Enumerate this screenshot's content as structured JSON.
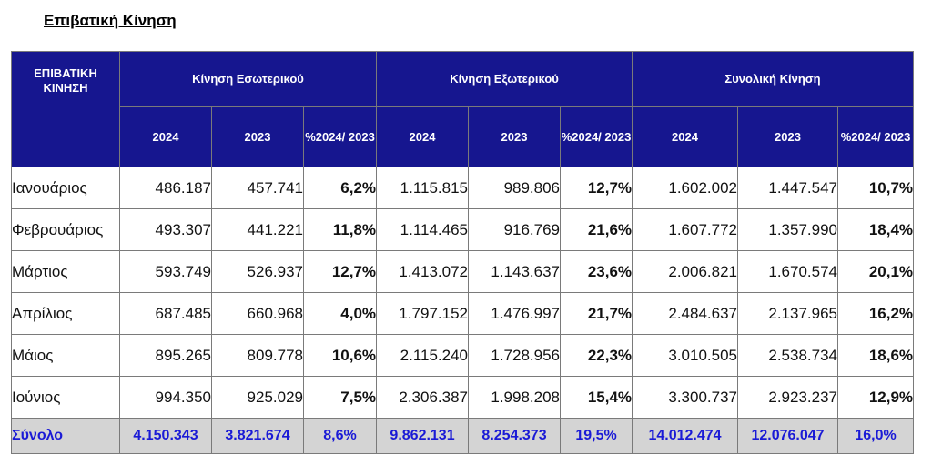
{
  "title": "Επιβατική Κίνηση",
  "header": {
    "corner": "ΕΠΙΒΑΤΙΚΗ ΚΙΝΗΣΗ",
    "groups": [
      "Κίνηση Εσωτερικού",
      "Κίνηση Εξωτερικού",
      "Συνολική Κίνηση"
    ],
    "sub": [
      "2024",
      "2023",
      "%2024/ 2023",
      "2024",
      "2023",
      "%2024/ 2023",
      "2024",
      "2023",
      "%2024/ 2023"
    ]
  },
  "rows": [
    {
      "month": "Ιανουάριος",
      "v": [
        "486.187",
        "457.741",
        "6,2%",
        "1.115.815",
        "989.806",
        "12,7%",
        "1.602.002",
        "1.447.547",
        "10,7%"
      ]
    },
    {
      "month": "Φεβρουάριος",
      "v": [
        "493.307",
        "441.221",
        "11,8%",
        "1.114.465",
        "916.769",
        "21,6%",
        "1.607.772",
        "1.357.990",
        "18,4%"
      ]
    },
    {
      "month": "Μάρτιος",
      "v": [
        "593.749",
        "526.937",
        "12,7%",
        "1.413.072",
        "1.143.637",
        "23,6%",
        "2.006.821",
        "1.670.574",
        "20,1%"
      ]
    },
    {
      "month": "Απρίλιος",
      "v": [
        "687.485",
        "660.968",
        "4,0%",
        "1.797.152",
        "1.476.997",
        "21,7%",
        "2.484.637",
        "2.137.965",
        "16,2%"
      ]
    },
    {
      "month": "Μάιος",
      "v": [
        "895.265",
        "809.778",
        "10,6%",
        "2.115.240",
        "1.728.956",
        "22,3%",
        "3.010.505",
        "2.538.734",
        "18,6%"
      ]
    },
    {
      "month": "Ιούνιος",
      "v": [
        "994.350",
        "925.029",
        "7,5%",
        "2.306.387",
        "1.998.208",
        "15,4%",
        "3.300.737",
        "2.923.237",
        "12,9%"
      ]
    }
  ],
  "total": {
    "label": "Σύνολο",
    "v": [
      "4.150.343",
      "3.821.674",
      "8,6%",
      "9.862.131",
      "8.254.373",
      "19,5%",
      "14.012.474",
      "12.076.047",
      "16,0%"
    ]
  }
}
